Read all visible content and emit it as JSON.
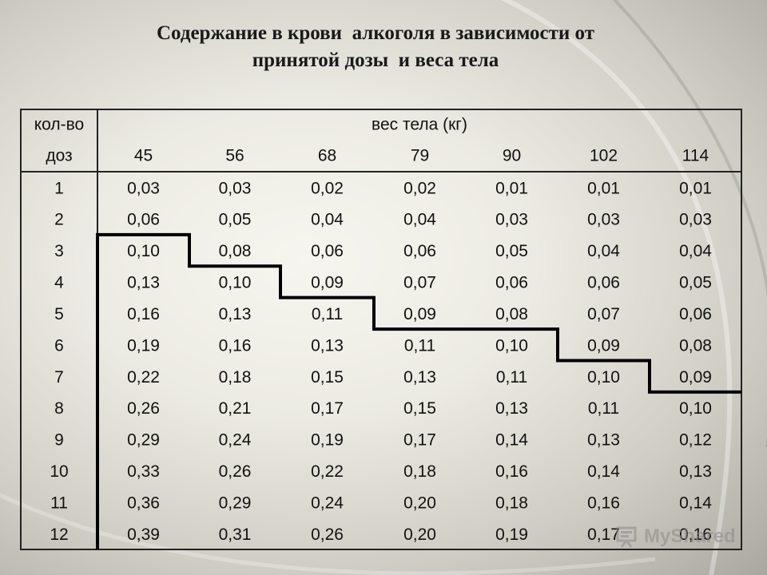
{
  "title": {
    "line1": "Содержание в крови  алкоголя в зависимости от",
    "line2": "принятой дозы  и веса тела"
  },
  "table": {
    "corner_label_top": "кол-во",
    "corner_label_bottom": "доз",
    "weight_header": "вес тела (кг)",
    "weights": [
      "45",
      "56",
      "68",
      "79",
      "90",
      "102",
      "114"
    ],
    "rows": [
      {
        "dose": "1",
        "values": [
          "0,03",
          "0,03",
          "0,02",
          "0,02",
          "0,01",
          "0,01",
          "0,01"
        ]
      },
      {
        "dose": "2",
        "values": [
          "0,06",
          "0,05",
          "0,04",
          "0,04",
          "0,03",
          "0,03",
          "0,03"
        ]
      },
      {
        "dose": "3",
        "values": [
          "0,10",
          "0,08",
          "0,06",
          "0,06",
          "0,05",
          "0,04",
          "0,04"
        ]
      },
      {
        "dose": "4",
        "values": [
          "0,13",
          "0,10",
          "0,09",
          "0,07",
          "0,06",
          "0,06",
          "0,05"
        ]
      },
      {
        "dose": "5",
        "values": [
          "0,16",
          "0,13",
          "0,11",
          "0,09",
          "0,08",
          "0,07",
          "0,06"
        ]
      },
      {
        "dose": "6",
        "values": [
          "0,19",
          "0,16",
          "0,13",
          "0,11",
          "0,10",
          "0,09",
          "0,08"
        ]
      },
      {
        "dose": "7",
        "values": [
          "0,22",
          "0,18",
          "0,15",
          "0,13",
          "0,11",
          "0,10",
          "0,09"
        ]
      },
      {
        "dose": "8",
        "values": [
          "0,26",
          "0,21",
          "0,17",
          "0,15",
          "0,13",
          "0,11",
          "0,10"
        ]
      },
      {
        "dose": "9",
        "values": [
          "0,29",
          "0,24",
          "0,19",
          "0,17",
          "0,14",
          "0,13",
          "0,12"
        ]
      },
      {
        "dose": "10",
        "values": [
          "0,33",
          "0,26",
          "0,22",
          "0,18",
          "0,16",
          "0,14",
          "0,13"
        ]
      },
      {
        "dose": "11",
        "values": [
          "0,36",
          "0,29",
          "0,24",
          "0,20",
          "0,18",
          "0,16",
          "0,14"
        ]
      },
      {
        "dose": "12",
        "values": [
          "0,39",
          "0,31",
          "0,26",
          "0,20",
          "0,19",
          "0,17",
          "0,16"
        ]
      }
    ],
    "threshold_first_highlighted_row": [
      "3",
      "4",
      "5",
      "6",
      "6",
      "7",
      "8"
    ]
  },
  "watermark": {
    "text": "MyShared",
    "icon": "presentation-board-icon"
  }
}
